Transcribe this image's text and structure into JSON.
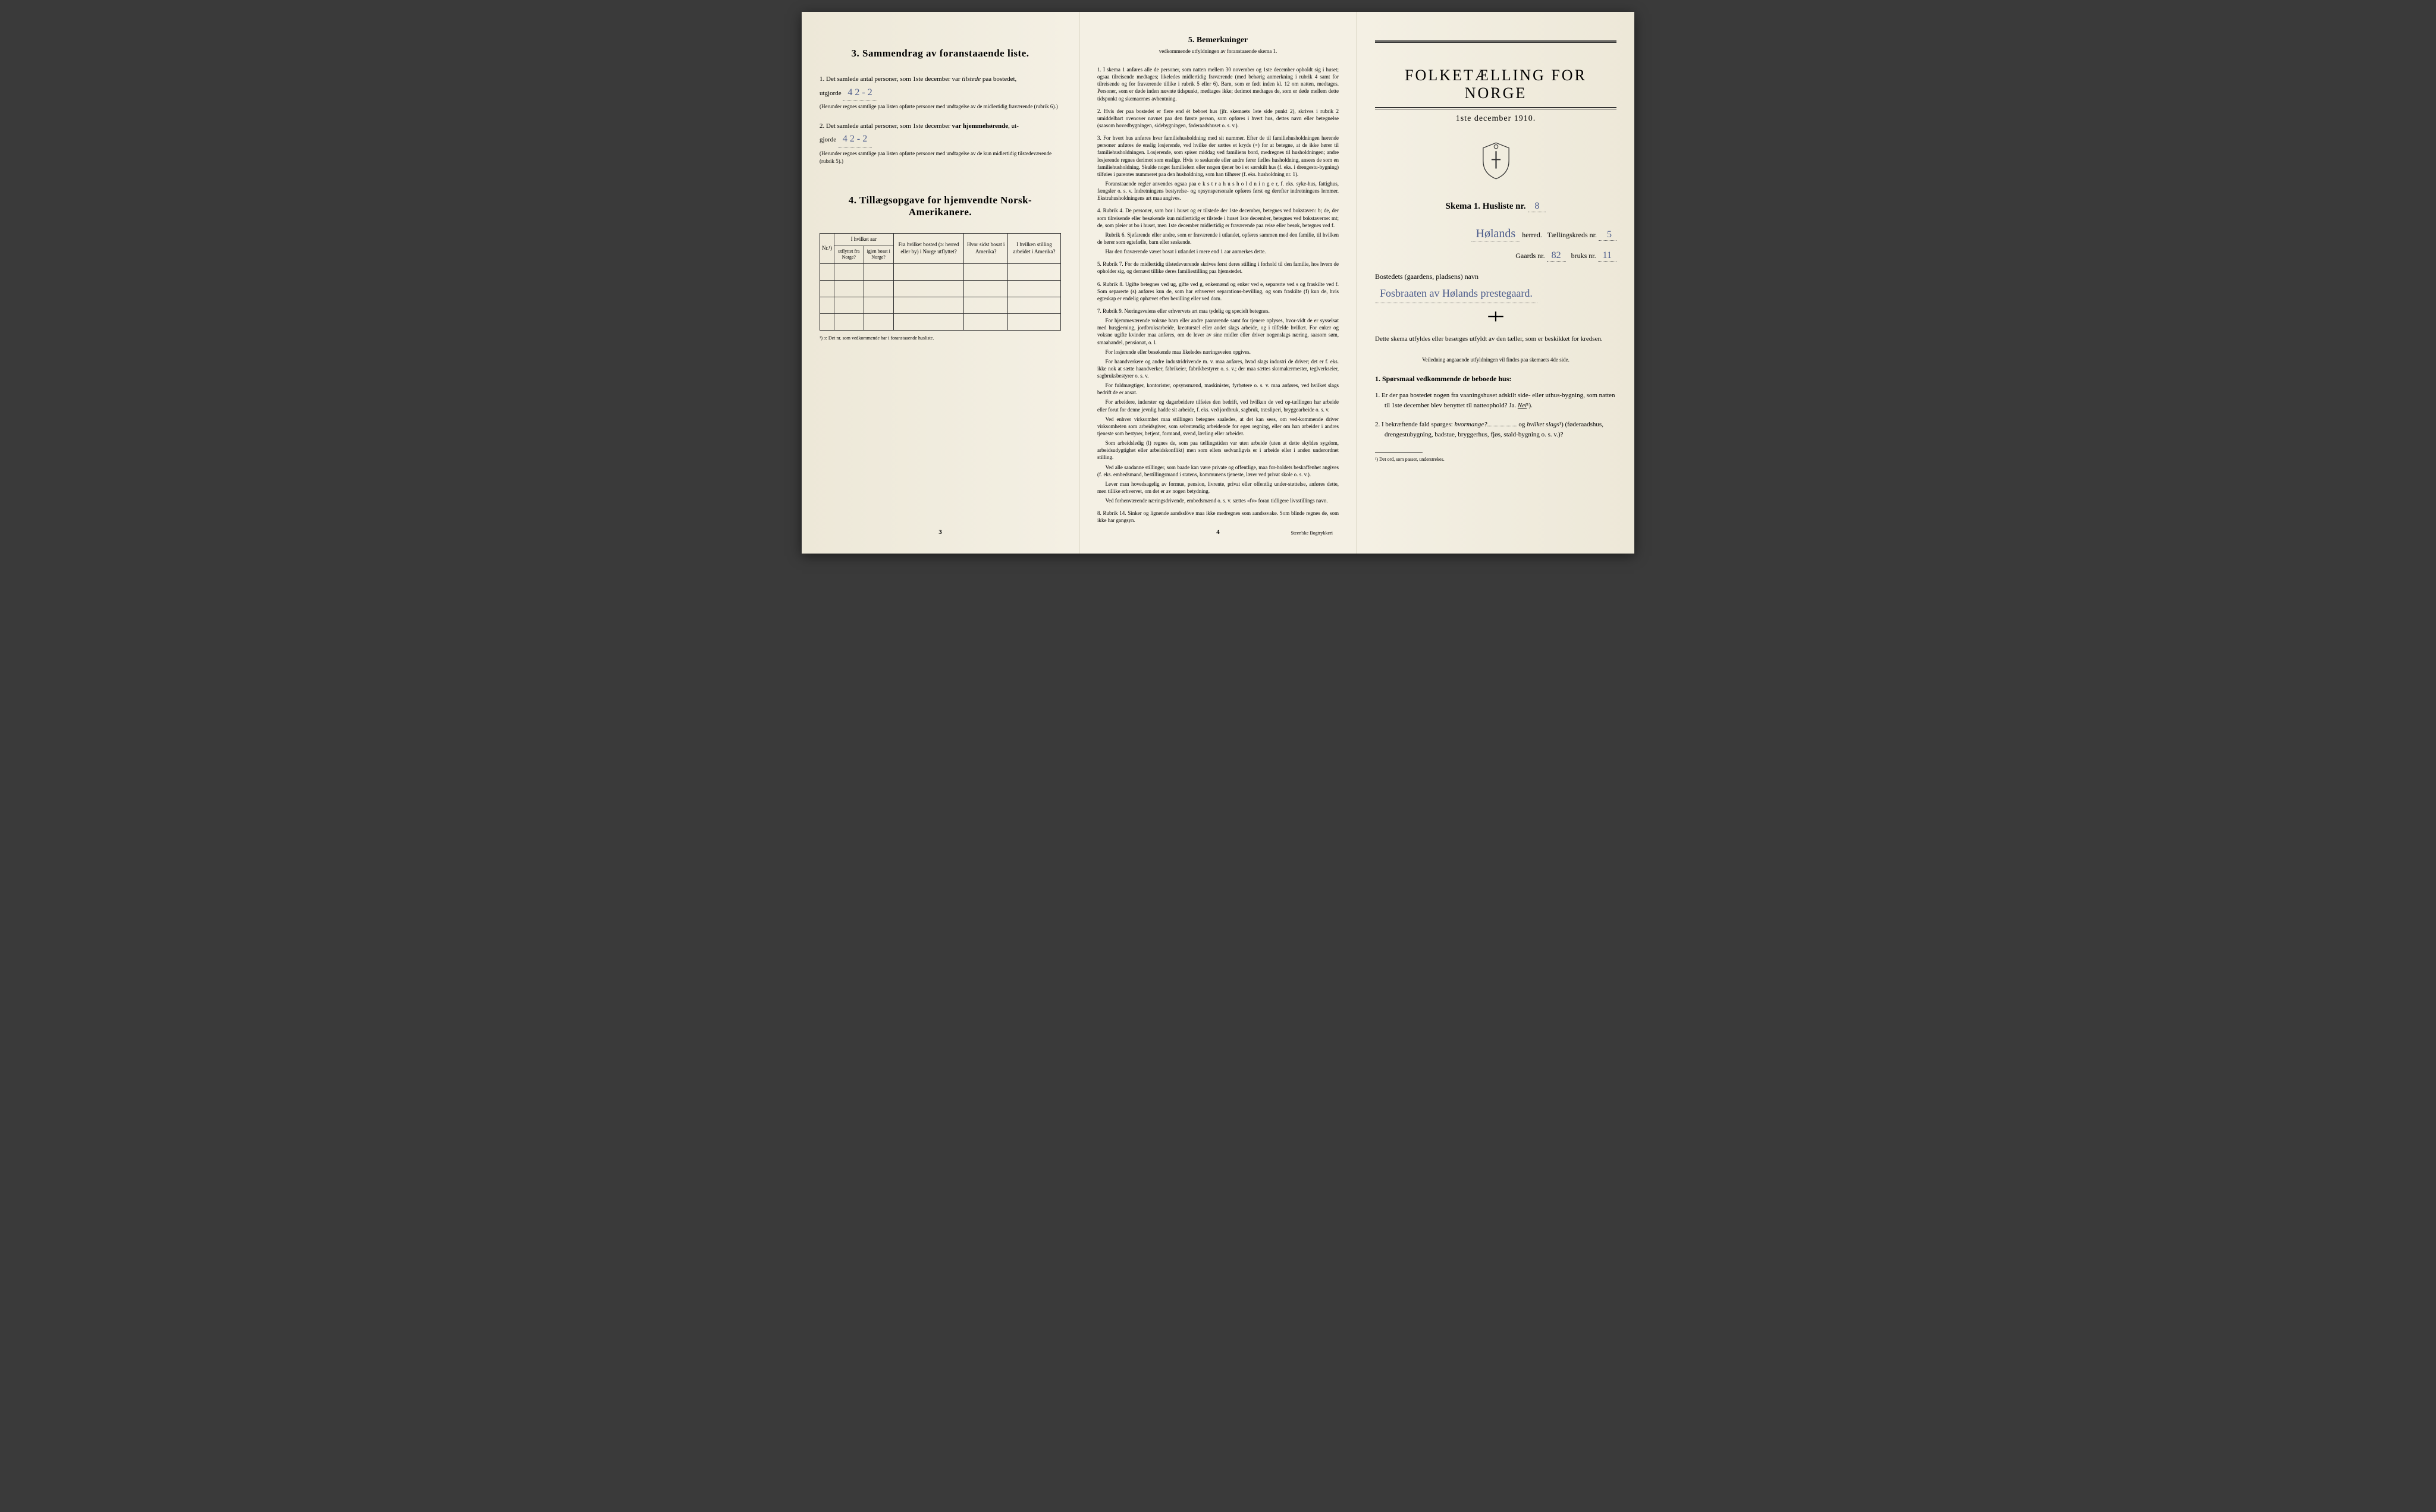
{
  "left_panel": {
    "section3": {
      "heading": "3.  Sammendrag av foranstaaende liste.",
      "item1_pre": "1.  Det samlede antal personer, som 1ste december var ",
      "item1_em": "tilstede",
      "item1_post": " paa bostedet,",
      "item1_line2_pre": "utgjorde",
      "item1_val": "4    2 - 2",
      "item1_fine": "(Herunder regnes samtlige paa listen opførte personer med undtagelse av de midlertidig fraværende (rubrik 6).)",
      "item2_pre": "2.  Det samlede antal personer, som 1ste december ",
      "item2_em": "var hjemmehørende",
      "item2_post": ", ut-",
      "item2_line2_pre": "gjorde",
      "item2_val": "4    2 - 2",
      "item2_fine": "(Herunder regnes samtlige paa listen opførte personer med undtagelse av de kun midlertidig tilstedeværende (rubrik 5).)"
    },
    "section4": {
      "heading": "4.  Tillægsopgave for hjemvendte Norsk-Amerikanere.",
      "col_nr": "Nr.¹)",
      "col_year_header": "I hvilket aar",
      "col_year_out": "utflyttet fra Norge?",
      "col_year_back": "igjen bosat i Norge?",
      "col_from": "Fra hvilket bosted (ɔ: herred eller by) i Norge utflyttet?",
      "col_where": "Hvor sidst bosat i Amerika?",
      "col_occupation": "I hvilken stilling arbeidet i Amerika?",
      "note": "¹) ɔ: Det nr. som vedkommende har i foranstaaende husliste."
    },
    "page_num": "3"
  },
  "center_panel": {
    "heading": "5.  Bemerkninger",
    "subtitle": "vedkommende utfyldningen av foranstaaende skema 1.",
    "remarks": [
      {
        "num": "1.",
        "text": "I skema 1 anføres alle de personer, som natten mellem 30 november og 1ste december opholdt sig i huset; ogsaa tilreisende medtages; likeledes midlertidig fraværende (med behørig anmerkning i rubrik 4 samt for tilreisende og for fraværende tillike i rubrik 5 eller 6). Barn, som er født inden kl. 12 om natten, medtages. Personer, som er døde inden nævnte tidspunkt, medtages ikke; derimot medtages de, som er døde mellem dette tidspunkt og skemaernes avhentning."
      },
      {
        "num": "2.",
        "text": "Hvis der paa bostedet er flere end ét beboet hus (jfr. skemaets 1ste side punkt 2), skrives i rubrik 2 umiddelbart ovenover navnet paa den første person, som opføres i hvert hus, dettes navn eller betegnelse (saasom hovedbygningen, sidebygningen, føderaadshuset o. s. v.)."
      },
      {
        "num": "3.",
        "text": "For hvert hus anføres hver familiehusholdning med sit nummer. Efter de til familiehusholdningen hørende personer anføres de enslig losjerende, ved hvilke der sættes et kryds (×) for at betegne, at de ikke hører til familiehusholdningen. Losjerende, som spiser middag ved familiens bord, medregnes til husholdningen; andre losjerende regnes derimot som enslige. Hvis to søskende eller andre fører fælles husholdning, ansees de som en familiehusholdning. Skulde noget familielem eller nogen tjener bo i et særskilt hus (f. eks. i drengestu-bygning) tilføies i parentes nummeret paa den husholdning, som han tilhører (f. eks. husholdning nr. 1).",
        "paras": [
          "Foranstaaende regler anvendes ogsaa paa e k s t r a h u s h o l d n i n g e r, f. eks. syke-hus, fattighus, fængsler o. s. v. Indretningens bestyrelse- og opsynspersonale opføres først og derefter indretningens lemmer. Ekstrahusholdningens art maa angives."
        ]
      },
      {
        "num": "4.",
        "text": "Rubrik 4. De personer, som bor i huset og er tilstede der 1ste december, betegnes ved bokstaven: b; de, der som tilreisende eller besøkende kun midlertidig er tilstede i huset 1ste december, betegnes ved bokstaverne: mt; de, som pleier at bo i huset, men 1ste december midlertidig er fraværende paa reise eller besøk, betegnes ved f.",
        "paras": [
          "Rubrik 6. Sjøfarende eller andre, som er fraværende i utlandet, opføres sammen med den familie, til hvilken de hører som egtefælle, barn eller søskende.",
          "Har den fraværende været bosat i utlandet i mere end 1 aar anmerkes dette."
        ]
      },
      {
        "num": "5.",
        "text": "Rubrik 7. For de midlertidig tilstedeværende skrives først deres stilling i forhold til den familie, hos hvem de opholder sig, og dernæst tillike deres familiestilling paa hjemstedet."
      },
      {
        "num": "6.",
        "text": "Rubrik 8. Ugifte betegnes ved ug, gifte ved g, enkemænd og enker ved e, separerte ved s og fraskilte ved f. Som separerte (s) anføres kun de, som har erhvervet separations-bevilling, og som fraskilte (f) kun de, hvis egteskap er endelig ophævet efter bevilling eller ved dom."
      },
      {
        "num": "7.",
        "text": "Rubrik 9. Næringsveiens eller erhvervets art maa tydelig og specielt betegnes.",
        "paras": [
          "For hjemmeværende voksne barn eller andre paarørende samt for tjenere oplyses, hvor-vidt de er sysselsat med husgjerning, jordbruksarbeide, kreaturstel eller andet slags arbeide, og i tilfælde hvilket. For enker og voksne ugifte kvinder maa anføres, om de lever av sine midler eller driver nogenslags næring, saasom søm, smaahandel, pensionat, o. l.",
          "For losjerende eller besøkende maa likeledes næringsveien opgives.",
          "For haandverkere og andre industridrivende m. v. maa anføres, hvad slags industri de driver; det er f. eks. ikke nok at sætte haandverker, fabrikeier, fabrikbestyrer o. s. v.; der maa sættes skomakermester, teglverkseier, sagbruksbestyrer o. s. v.",
          "For fuldmægtiger, kontorister, opsynsmænd, maskinister, fyrbøtere o. s. v. maa anføres, ved hvilket slags bedrift de er ansat.",
          "For arbeidere, inderster og dagarbeidere tilføies den bedrift, ved hvilken de ved op-tællingen har arbeide eller forut for denne jevnlig hadde sit arbeide, f. eks. ved jordbruk, sagbruk, træsliperi, bryggearbeide o. s. v.",
          "Ved enhver virksomhet maa stillingen betegnes saaledes, at det kan sees, om ved-kommende driver virksomheten som arbeidsgiver, som selvstændig arbeidende for egen regning, eller om han arbeider i andres tjeneste som bestyrer, betjent, formand, svend, lærling eller arbeider.",
          "Som arbeidsledig (l) regnes de, som paa tællingstiden var uten arbeide (uten at dette skyldes sygdom, arbeidsudygtighet eller arbeidskonflikt) men som ellers sedvanligvis er i arbeide eller i anden underordnet stilling.",
          "Ved alle saadanne stillinger, som baade kan være private og offentlige, maa for-holdets beskaffenhet angives (f. eks. embedsmand, bestillingsmand i statens, kommunens tjeneste, lærer ved privat skole o. s. v.).",
          "Lever man hovedsagelig av formue, pension, livrente, privat eller offentlig under-støttelse, anføres dette, men tillike erhvervet, om det er av nogen betydning.",
          "Ved forhenværende næringsdrivende, embedsmænd o. s. v. sættes «fv» foran tidligere livsstillings navn."
        ]
      },
      {
        "num": "8.",
        "text": "Rubrik 14. Sinker og lignende aandsslöve maa ikke medregnes som aandssvake. Som blinde regnes de, som ikke har gangsyn."
      }
    ],
    "page_num": "4",
    "printer": "Steen'ske Bogtrykkeri"
  },
  "right_panel": {
    "main_title": "FOLKETÆLLING FOR NORGE",
    "date": "1ste december 1910.",
    "skema_label": "Skema 1.  Husliste nr.",
    "skema_nr": "8",
    "herred_name": "Hølands",
    "herred_label": "herred.",
    "kreds_label": "Tællingskreds nr.",
    "kreds_nr": "5",
    "gaards_label": "Gaards nr.",
    "gaards_nr": "82",
    "bruks_label": "bruks nr.",
    "bruks_nr": "11",
    "bosted_label": "Bostedets (gaardens, pladsens) navn",
    "bosted_name": "Fosbraaten av Hølands prestegaard.",
    "instructions": "Dette skema utfyldes eller besørges utfyldt av den tæller, som er beskikket for kredsen.",
    "instructions_sub": "Veiledning angaaende utfyldningen vil findes paa skemaets 4de side.",
    "q_heading": "1. Spørsmaal vedkommende de beboede hus:",
    "q1": "1.  Er der paa bostedet nogen fra vaaningshuset adskilt side- eller uthus-bygning, som natten til 1ste december blev benyttet til natteophold?   Ja.  ",
    "q1_answer": "Nei",
    "q1_suffix": "¹).",
    "q2_pre": "2.  I bekræftende fald spørges: ",
    "q2_em1": "hvormange?",
    "q2_mid": " og ",
    "q2_em2": "hvilket slags",
    "q2_suffix": "¹) (føderaadshus, drengestubygning, badstue, bryggerhus, fjøs, stald-bygning o. s. v.)?",
    "footnote": "¹) Det ord, som passer, understrekes."
  }
}
